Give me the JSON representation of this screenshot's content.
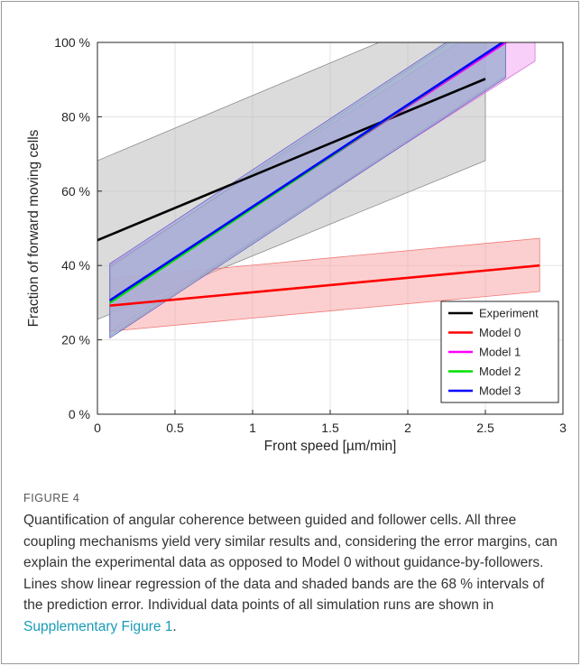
{
  "figure": {
    "label": "FIGURE 4",
    "caption_text": "Quantification of angular coherence between guided and follower cells. All three coupling mechanisms yield very similar results and, considering the error margins, can explain the experimental data as opposed to Model 0 without guidance-by-followers. Lines show linear regression of the data and shaded bands are the 68 % intervals of the prediction error. Individual data points of all simulation runs are shown in ",
    "caption_link": "Supplementary Figure 1",
    "caption_end": "."
  },
  "chart_data": {
    "type": "line",
    "xlabel": "Front speed [µm/min]",
    "ylabel": "Fraction of forward moving cells",
    "xlim": [
      0,
      3
    ],
    "ylim": [
      0,
      100
    ],
    "xticks": [
      0,
      0.5,
      1,
      1.5,
      2,
      2.5,
      3
    ],
    "xtick_labels": [
      "0",
      "0.5",
      "1",
      "1.5",
      "2",
      "2.5",
      "3"
    ],
    "yticks": [
      0,
      20,
      40,
      60,
      80,
      100
    ],
    "ytick_labels": [
      "0 %",
      "20 %",
      "40 %",
      "60 %",
      "80 %",
      "100 %"
    ],
    "grid": true,
    "legend_position": "bottom-right",
    "series": [
      {
        "name": "Experiment",
        "color": "#000000",
        "x": [
          0,
          2.5
        ],
        "y": [
          46.8,
          90.2
        ],
        "band": {
          "x": [
            0,
            2.5
          ],
          "lower": [
            25.5,
            68.2
          ],
          "upper": [
            68.2,
            112.0
          ]
        },
        "band_color": "#bdbdbd",
        "band_edge": "#8c8c8c"
      },
      {
        "name": "Model 0",
        "color": "#ff0000",
        "x": [
          0.08,
          2.85
        ],
        "y": [
          29.2,
          40.0
        ],
        "band": {
          "x": [
            0.08,
            2.85
          ],
          "lower": [
            22.3,
            33.0
          ],
          "upper": [
            36.5,
            47.3
          ]
        },
        "band_color": "#f8a8a8",
        "band_edge": "#f07a7a"
      },
      {
        "name": "Model 1",
        "color": "#ff00ff",
        "x": [
          0.08,
          2.65
        ],
        "y": [
          30.5,
          100.5
        ],
        "band": {
          "x": [
            0.08,
            2.82
          ],
          "lower": [
            22.0,
            95.0
          ],
          "upper": [
            40.0,
            113.0
          ]
        },
        "band_color": "#f2a8f2",
        "band_edge": "#d47ad4"
      },
      {
        "name": "Model 2",
        "color": "#00e000",
        "x": [
          0.08,
          2.63
        ],
        "y": [
          30.0,
          100.5
        ],
        "band": {
          "x": [
            0.08,
            2.63
          ],
          "lower": [
            21.0,
            91.0
          ],
          "upper": [
            39.5,
            110.0
          ]
        },
        "band_color": "#a8e8a8",
        "band_edge": "#7ac47a"
      },
      {
        "name": "Model 3",
        "color": "#0000ff",
        "x": [
          0.08,
          2.63
        ],
        "y": [
          30.6,
          100.5
        ],
        "band": {
          "x": [
            0.08,
            2.63
          ],
          "lower": [
            20.5,
            90.5
          ],
          "upper": [
            40.5,
            110.5
          ]
        },
        "band_color": "#9a96e6",
        "band_edge": "#6a66c6"
      }
    ]
  }
}
